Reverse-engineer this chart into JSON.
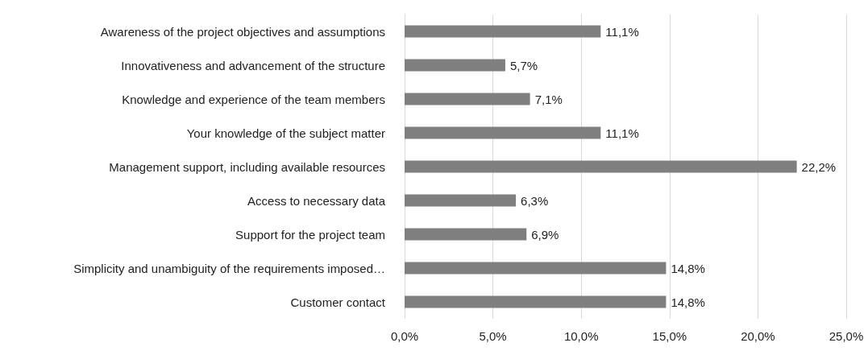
{
  "chart_data": {
    "type": "bar",
    "orientation": "horizontal",
    "categories": [
      "Awareness of the project objectives and assumptions",
      "Innovativeness and advancement of the structure",
      "Knowledge and experience of the team members",
      "Your knowledge of the subject matter",
      "Management support, including available resources",
      "Access to necessary data",
      "Support for the project team",
      "Simplicity and unambiguity of the requirements imposed…",
      "Customer contact"
    ],
    "values": [
      11.1,
      5.7,
      7.1,
      11.1,
      22.2,
      6.3,
      6.9,
      14.8,
      14.8
    ],
    "value_labels": [
      "11,1%",
      "5,7%",
      "7,1%",
      "11,1%",
      "22,2%",
      "6,3%",
      "6,9%",
      "14,8%",
      "14,8%"
    ],
    "color": "#7f7f7f",
    "xlim": [
      0,
      25
    ],
    "xticks": [
      {
        "value": 0,
        "label": "0,0%"
      },
      {
        "value": 5,
        "label": "5,0%"
      },
      {
        "value": 10,
        "label": "10,0%"
      },
      {
        "value": 15,
        "label": "15,0%"
      },
      {
        "value": 20,
        "label": "20,0%"
      },
      {
        "value": 25,
        "label": "25,0%"
      }
    ],
    "grid": "x"
  }
}
